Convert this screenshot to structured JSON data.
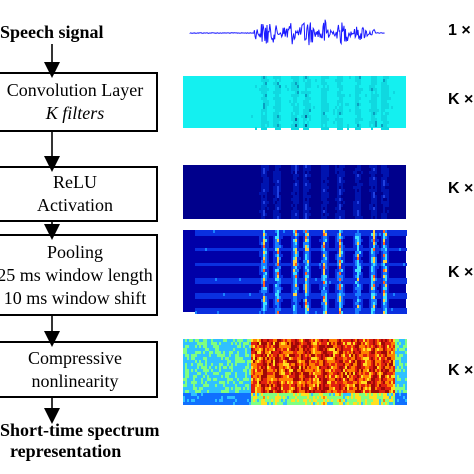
{
  "flow": {
    "input_label": "Speech signal",
    "steps": [
      {
        "lines": [
          "Convolution Layer",
          "K filters"
        ]
      },
      {
        "lines": [
          "ReLU",
          "Activation"
        ]
      },
      {
        "lines": [
          "Pooling",
          "25 ms window length",
          "10 ms window shift"
        ]
      },
      {
        "lines": [
          "Compressive",
          "nonlinearity"
        ]
      }
    ],
    "output_label_line1": "Short-time spectrum",
    "output_label_line2": "representation"
  },
  "dimensions": [
    "1 ×",
    "K ×",
    "K ×",
    "K ×",
    "K ×"
  ],
  "panels": [
    {
      "kind": "waveform",
      "color": "#1a1aff"
    },
    {
      "kind": "heatmap",
      "base": "#14f0f0",
      "accent": "#0a9fc0"
    },
    {
      "kind": "heatmap",
      "base": "#00008c",
      "accent": "#3a6cff"
    },
    {
      "kind": "heatmap",
      "base": "#0000a8",
      "accent": "#ffd040"
    },
    {
      "kind": "heatmap",
      "base": "#0a30d0",
      "accent": "#c01010"
    }
  ]
}
